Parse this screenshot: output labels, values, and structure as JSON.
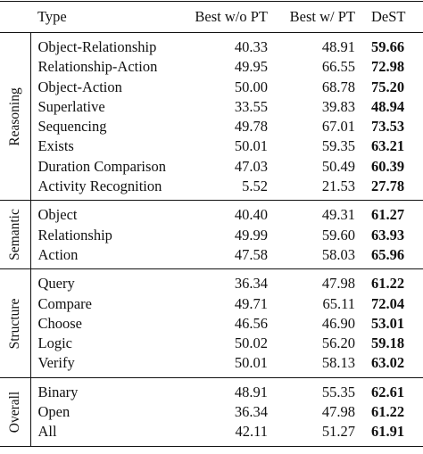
{
  "headers": {
    "type": "Type",
    "best_wo_pt": "Best w/o PT",
    "best_w_pt": "Best w/ PT",
    "dest": "DeST"
  },
  "groups": [
    {
      "name": "Reasoning",
      "rows": [
        {
          "type": "Object-Relationship",
          "best_wo_pt": "40.33",
          "best_w_pt": "48.91",
          "dest": "59.66"
        },
        {
          "type": "Relationship-Action",
          "best_wo_pt": "49.95",
          "best_w_pt": "66.55",
          "dest": "72.98"
        },
        {
          "type": "Object-Action",
          "best_wo_pt": "50.00",
          "best_w_pt": "68.78",
          "dest": "75.20"
        },
        {
          "type": "Superlative",
          "best_wo_pt": "33.55",
          "best_w_pt": "39.83",
          "dest": "48.94"
        },
        {
          "type": "Sequencing",
          "best_wo_pt": "49.78",
          "best_w_pt": "67.01",
          "dest": "73.53"
        },
        {
          "type": "Exists",
          "best_wo_pt": "50.01",
          "best_w_pt": "59.35",
          "dest": "63.21"
        },
        {
          "type": "Duration Comparison",
          "best_wo_pt": "47.03",
          "best_w_pt": "50.49",
          "dest": "60.39"
        },
        {
          "type": "Activity Recognition",
          "best_wo_pt": "5.52",
          "best_w_pt": "21.53",
          "dest": "27.78"
        }
      ]
    },
    {
      "name": "Semantic",
      "rows": [
        {
          "type": "Object",
          "best_wo_pt": "40.40",
          "best_w_pt": "49.31",
          "dest": "61.27"
        },
        {
          "type": "Relationship",
          "best_wo_pt": "49.99",
          "best_w_pt": "59.60",
          "dest": "63.93"
        },
        {
          "type": "Action",
          "best_wo_pt": "47.58",
          "best_w_pt": "58.03",
          "dest": "65.96"
        }
      ]
    },
    {
      "name": "Structure",
      "rows": [
        {
          "type": "Query",
          "best_wo_pt": "36.34",
          "best_w_pt": "47.98",
          "dest": "61.22"
        },
        {
          "type": "Compare",
          "best_wo_pt": "49.71",
          "best_w_pt": "65.11",
          "dest": "72.04"
        },
        {
          "type": "Choose",
          "best_wo_pt": "46.56",
          "best_w_pt": "46.90",
          "dest": "53.01"
        },
        {
          "type": "Logic",
          "best_wo_pt": "50.02",
          "best_w_pt": "56.20",
          "dest": "59.18"
        },
        {
          "type": "Verify",
          "best_wo_pt": "50.01",
          "best_w_pt": "58.13",
          "dest": "63.02"
        }
      ]
    },
    {
      "name": "Overall",
      "rows": [
        {
          "type": "Binary",
          "best_wo_pt": "48.91",
          "best_w_pt": "55.35",
          "dest": "62.61"
        },
        {
          "type": "Open",
          "best_wo_pt": "36.34",
          "best_w_pt": "47.98",
          "dest": "61.22"
        },
        {
          "type": "All",
          "best_wo_pt": "42.11",
          "best_w_pt": "51.27",
          "dest": "61.91"
        }
      ]
    }
  ]
}
